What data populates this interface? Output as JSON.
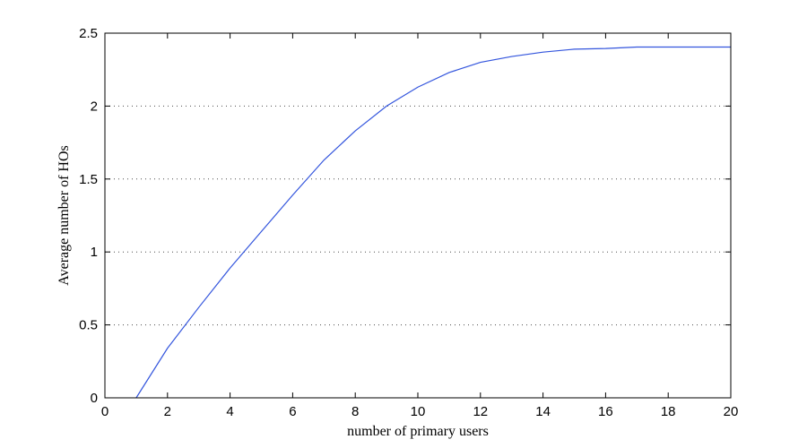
{
  "chart_data": {
    "type": "line",
    "title": "",
    "xlabel": "number of primary users",
    "ylabel": "Average number of HOs",
    "xlim": [
      0,
      20
    ],
    "ylim": [
      0,
      2.5
    ],
    "xticks": [
      0,
      2,
      4,
      6,
      8,
      10,
      12,
      14,
      16,
      18,
      20
    ],
    "yticks": [
      0,
      0.5,
      1,
      1.5,
      2,
      2.5
    ],
    "xtick_labels": [
      "0",
      "2",
      "4",
      "6",
      "8",
      "10",
      "12",
      "14",
      "16",
      "18",
      "20"
    ],
    "ytick_labels": [
      "0",
      "0.5",
      "1",
      "1.5",
      "2",
      "2.5"
    ],
    "grid": "horizontal-dotted",
    "series": [
      {
        "color": "#3355dd",
        "x": [
          1,
          2,
          3,
          4,
          5,
          6,
          7,
          8,
          9,
          10,
          11,
          12,
          13,
          14,
          15,
          16,
          17,
          18,
          19,
          20
        ],
        "y": [
          0,
          0.34,
          0.62,
          0.89,
          1.14,
          1.39,
          1.63,
          1.83,
          2.0,
          2.13,
          2.23,
          2.3,
          2.34,
          2.37,
          2.39,
          2.395,
          2.405,
          2.405,
          2.405,
          2.405
        ]
      }
    ]
  }
}
